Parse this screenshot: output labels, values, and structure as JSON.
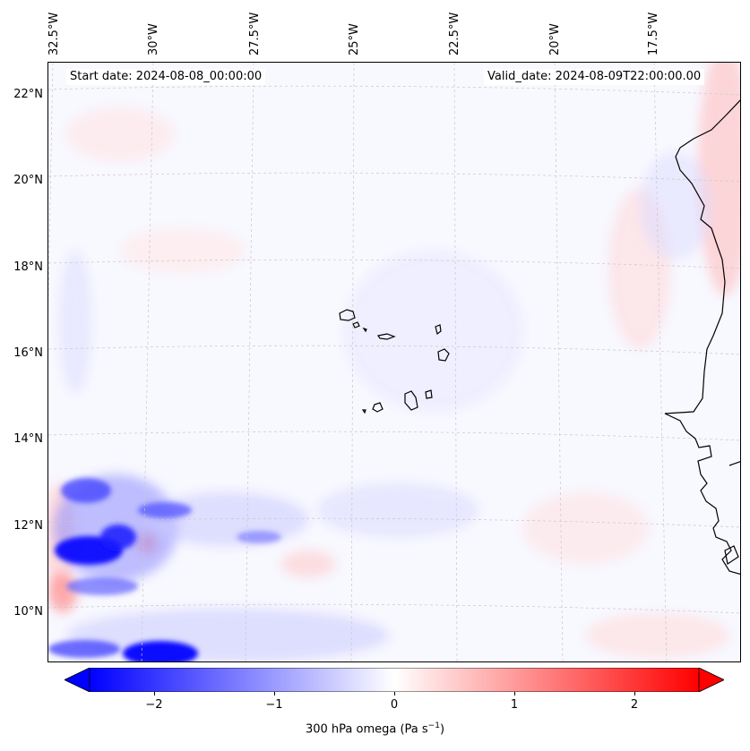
{
  "map": {
    "start_date": "Start date: 2024-08-08_00:00:00",
    "valid_date": "Valid_date: 2024-08-09T22:00:00.00",
    "lon_labels": [
      "32.5°W",
      "30°W",
      "27.5°W",
      "25°W",
      "22.5°W",
      "20°W",
      "17.5°W"
    ],
    "lat_labels": [
      "22°N",
      "20°N",
      "18°N",
      "16°N",
      "14°N",
      "12°N",
      "10°N"
    ],
    "colors": {
      "negative": "#0000ff",
      "positive": "#ff0000",
      "neutral": "#ffffff",
      "coast": "#000000"
    }
  },
  "colorbar": {
    "ticks": [
      "−2",
      "−1",
      "0",
      "1",
      "2"
    ],
    "tick_values": [
      -2,
      -1,
      0,
      1,
      2
    ],
    "range": [
      -2.5,
      2.5
    ],
    "label_main": "300 hPa omega (Pa s",
    "label_sup": "−1",
    "label_end": ")"
  }
}
